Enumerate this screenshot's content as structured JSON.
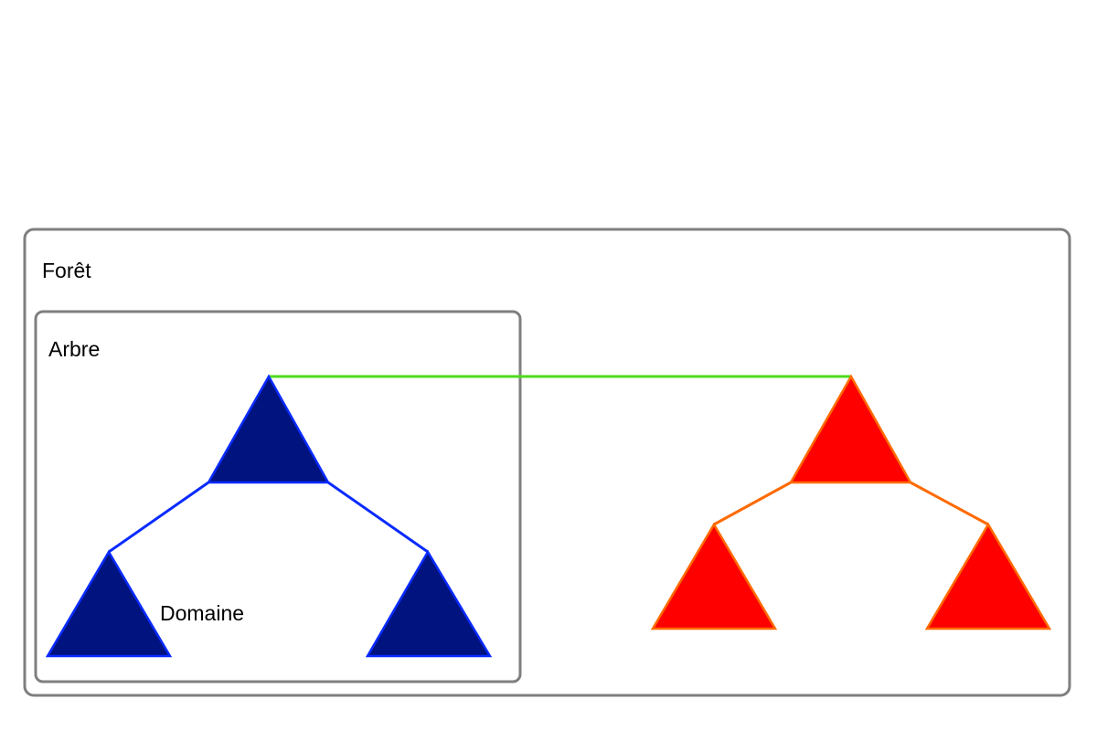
{
  "forest": {
    "label": "Forêt",
    "border_color": "#7f7f7f"
  },
  "tree": {
    "label": "Arbre",
    "border_color": "#7f7f7f"
  },
  "domain": {
    "label": "Domaine"
  },
  "blue_tree": {
    "fill_color": "#00137f",
    "edge_color": "#0a2bff"
  },
  "red_tree": {
    "fill_color": "#ff0000",
    "edge_color": "#ff6a00"
  },
  "trust_link": {
    "color": "#4cdc1c"
  }
}
